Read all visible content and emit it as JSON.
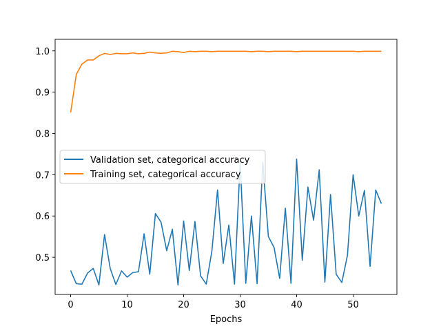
{
  "chart_data": {
    "type": "line",
    "title": "",
    "xlabel": "Epochs",
    "ylabel": "",
    "xlim": [
      -2.75,
      57.75
    ],
    "ylim": [
      0.41,
      1.028
    ],
    "xticks": [
      0,
      10,
      20,
      30,
      40,
      50
    ],
    "xtick_labels": [
      "0",
      "10",
      "20",
      "30",
      "40",
      "50"
    ],
    "yticks": [
      0.5,
      0.6,
      0.7,
      0.8,
      0.9,
      1.0
    ],
    "ytick_labels": [
      "0.5",
      "0.6",
      "0.7",
      "0.8",
      "0.9",
      "1.0"
    ],
    "grid": false,
    "legend": {
      "position": "center-left"
    },
    "x": [
      0,
      1,
      2,
      3,
      4,
      5,
      6,
      7,
      8,
      9,
      10,
      11,
      12,
      13,
      14,
      15,
      16,
      17,
      18,
      19,
      20,
      21,
      22,
      23,
      24,
      25,
      26,
      27,
      28,
      29,
      30,
      31,
      32,
      33,
      34,
      35,
      36,
      37,
      38,
      39,
      40,
      41,
      42,
      43,
      44,
      45,
      46,
      47,
      48,
      49,
      50,
      51,
      52,
      53,
      54,
      55
    ],
    "series": [
      {
        "name": "Validation set, categorical accuracy",
        "color": "#1f77b4",
        "values": [
          0.468,
          0.436,
          0.435,
          0.462,
          0.473,
          0.433,
          0.555,
          0.473,
          0.434,
          0.467,
          0.452,
          0.463,
          0.465,
          0.557,
          0.459,
          0.606,
          0.585,
          0.516,
          0.568,
          0.433,
          0.588,
          0.468,
          0.587,
          0.455,
          0.435,
          0.515,
          0.663,
          0.485,
          0.578,
          0.435,
          0.73,
          0.437,
          0.6,
          0.436,
          0.73,
          0.55,
          0.524,
          0.449,
          0.619,
          0.437,
          0.738,
          0.493,
          0.67,
          0.59,
          0.712,
          0.44,
          0.652,
          0.459,
          0.439,
          0.505,
          0.7,
          0.6,
          0.662,
          0.478,
          0.663,
          0.63
        ]
      },
      {
        "name": "Training set, categorical accuracy",
        "color": "#ff7f0e",
        "values": [
          0.851,
          0.943,
          0.968,
          0.978,
          0.978,
          0.988,
          0.994,
          0.991,
          0.994,
          0.993,
          0.993,
          0.995,
          0.993,
          0.994,
          0.997,
          0.995,
          0.994,
          0.995,
          0.999,
          0.998,
          0.996,
          0.999,
          0.998,
          0.999,
          0.999,
          0.998,
          0.999,
          0.999,
          0.999,
          0.999,
          0.999,
          0.999,
          0.998,
          0.999,
          0.999,
          0.998,
          0.999,
          0.999,
          0.999,
          0.999,
          0.998,
          0.999,
          0.999,
          0.999,
          0.999,
          0.999,
          0.999,
          0.999,
          0.999,
          0.999,
          0.999,
          0.998,
          0.999,
          0.999,
          0.999,
          0.999
        ]
      }
    ]
  }
}
